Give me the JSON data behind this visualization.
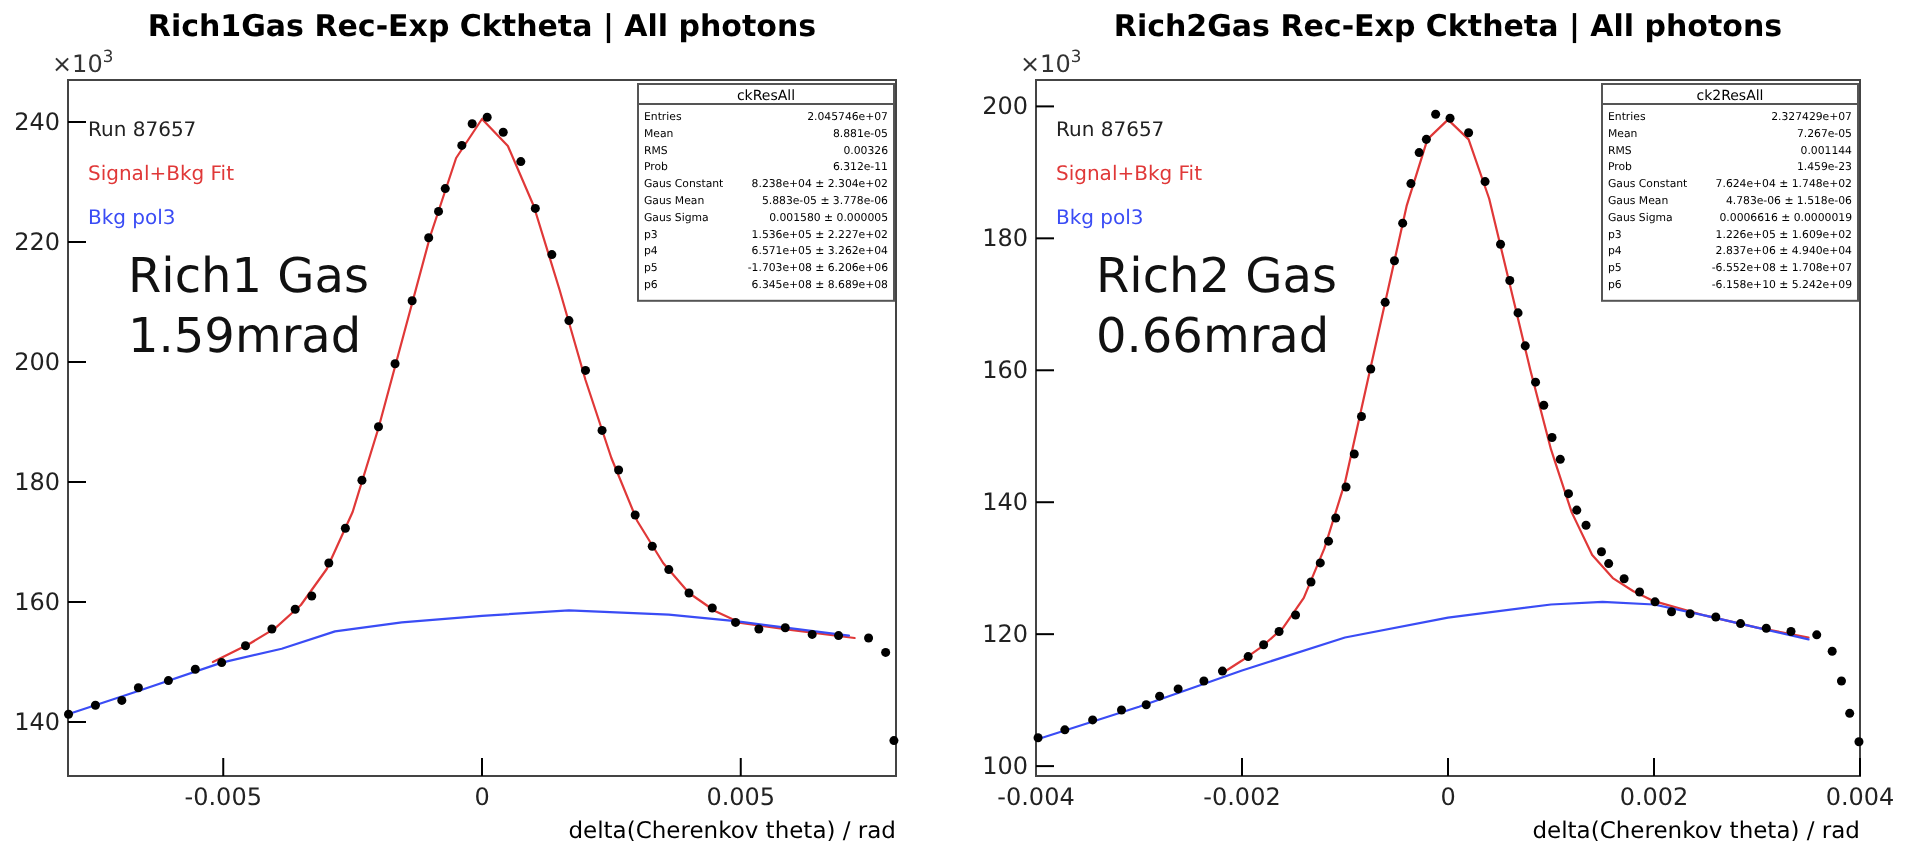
{
  "chart_data": [
    {
      "type": "scatter",
      "title": "Rich1Gas Rec-Exp Cktheta | All photons",
      "xlabel": "delta(Cherenkov theta) / rad",
      "xlim": [
        -0.008,
        0.008
      ],
      "xticks": [
        -0.005,
        0,
        0.005
      ],
      "ylim": [
        131,
        247
      ],
      "yticks": [
        140,
        160,
        180,
        200,
        220,
        240
      ],
      "legend": "top left",
      "annotations": [
        "×10$^{3}$",
        "Run 87657",
        "Rich1 Gas",
        "1.59mrad",
        "ckResAll",
        "Entries",
        "2.045746e+07",
        "Mean",
        "8.881e-05",
        "RMS",
        "0.00326",
        "Prob",
        "6.312e-11",
        "Gaus Constant",
        "8.238e+04 ± 2.304e+02",
        "Gaus Mean",
        "5.883e-05 ± 3.778e-06",
        "Gaus Sigma",
        "0.001580 ± 0.000005",
        "p3",
        "1.536e+05 ± 2.227e+02",
        "p4",
        "6.571e+05 ± 3.262e+04",
        "p5",
        "-1.703e+08 ± 6.206e+06",
        "p6",
        "6.345e+08 ± 8.689e+08"
      ],
      "series": [
        {
          "type": "scatter",
          "color": "#000000",
          "marker": "circle",
          "x": [
            -0.00799,
            -0.00747,
            -0.00696,
            -0.00664,
            -0.00606,
            -0.00554,
            -0.00503,
            -0.00457,
            -0.00406,
            -0.00361,
            -0.00329,
            -0.00296,
            -0.00264,
            -0.00232,
            -0.002,
            -0.00168,
            -0.00135,
            -0.00103,
            -0.00084,
            -0.00071,
            -0.00039,
            -0.00019,
            0.0001,
            0.00041,
            0.00075,
            0.00103,
            0.00135,
            0.00168,
            0.002,
            0.00232,
            0.00264,
            0.00296,
            0.00329,
            0.00361,
            0.004,
            0.00445,
            0.0049,
            0.00535,
            0.00586,
            0.00638,
            0.00689,
            0.00747,
            0.0078,
            0.00796
          ],
          "values": [
            141.3,
            142.8,
            143.6,
            145.7,
            146.9,
            148.8,
            149.9,
            152.7,
            155.5,
            158.8,
            161,
            166.5,
            172.3,
            180.3,
            189.2,
            199.7,
            210.2,
            220.7,
            225.1,
            228.9,
            236.1,
            239.7,
            240.8,
            238.3,
            233.4,
            225.6,
            217.9,
            206.9,
            198.6,
            188.6,
            182,
            174.5,
            169.3,
            165.4,
            161.5,
            159,
            156.6,
            155.5,
            155.7,
            154.6,
            154.4,
            154,
            151.6,
            136.9
          ]
        },
        {
          "type": "line",
          "name": "Signal+Bkg Fit",
          "color": "#e03838",
          "marker": "none",
          "x": [
            -0.0052,
            -0.0045,
            -0.004,
            -0.0035,
            -0.003,
            -0.0025,
            -0.002,
            -0.0015,
            -0.001,
            -0.0005,
            0,
            0.0005,
            0.001,
            0.0015,
            0.002,
            0.0025,
            0.003,
            0.0035,
            0.004,
            0.0045,
            0.005,
            0.006,
            0.0072
          ],
          "values": [
            150,
            153,
            155.6,
            159.5,
            165.5,
            175,
            189,
            205,
            221,
            234,
            240.5,
            236,
            226,
            212,
            197,
            184,
            173.5,
            166.5,
            161.5,
            158.5,
            156.5,
            155.3,
            154
          ]
        },
        {
          "type": "line",
          "name": "Bkg pol3",
          "color": "#3a4cf5",
          "marker": "none",
          "x": [
            -0.008,
            -0.0067,
            -0.00503,
            -0.00387,
            -0.00284,
            -0.00155,
            0,
            0.00168,
            0.00361,
            0.0049,
            0.00709
          ],
          "values": [
            141.3,
            145,
            149.9,
            152.2,
            155.1,
            156.6,
            157.7,
            158.6,
            157.9,
            156.8,
            154.4
          ]
        }
      ]
    },
    {
      "type": "scatter",
      "title": "Rich2Gas Rec-Exp Cktheta | All photons",
      "xlabel": "delta(Cherenkov theta) / rad",
      "xlim": [
        -0.004,
        0.004
      ],
      "xticks": [
        -0.004,
        -0.002,
        0,
        0.002,
        0.004
      ],
      "ylim": [
        98.5,
        204
      ],
      "yticks": [
        100,
        120,
        140,
        160,
        180,
        200
      ],
      "legend": "top left",
      "annotations": [
        "×10$^{3}$",
        "Run 87657",
        "Rich2 Gas",
        "0.66mrad",
        "ck2ResAll",
        "Entries",
        "2.327429e+07",
        "Mean",
        "7.267e-05",
        "RMS",
        "0.001144",
        "Prob",
        "1.459e-23",
        "Gaus Constant",
        "7.624e+04 ± 1.748e+02",
        "Gaus Mean",
        "4.783e-06 ± 1.518e-06",
        "Gaus Sigma",
        "0.0006616 ± 0.0000019",
        "p3",
        "1.226e+05 ± 1.609e+02",
        "p4",
        "2.837e+06 ± 4.940e+04",
        "p5",
        "-6.552e+08 ± 1.708e+07",
        "p6",
        "-6.158e+10 ± 5.242e+09"
      ],
      "series": [
        {
          "type": "scatter",
          "color": "#000000",
          "marker": "circle",
          "x": [
            -0.00398,
            -0.00372,
            -0.00345,
            -0.00317,
            -0.00293,
            -0.0028,
            -0.00262,
            -0.00237,
            -0.00219,
            -0.00194,
            -0.00179,
            -0.00164,
            -0.00148,
            -0.00133,
            -0.00124,
            -0.00116,
            -0.00109,
            -0.00099,
            -0.00091,
            -0.00084,
            -0.00075,
            -0.00061,
            -0.00052,
            -0.00044,
            -0.00036,
            -0.00028,
            -0.00021,
            -0.00012,
            2e-05,
            0.0002,
            0.00036,
            0.00051,
            0.0006,
            0.00068,
            0.00075,
            0.00085,
            0.00093,
            0.00101,
            0.00109,
            0.00117,
            0.00125,
            0.00134,
            0.00149,
            0.00156,
            0.00171,
            0.00186,
            0.00201,
            0.00217,
            0.00235,
            0.0026,
            0.00284,
            0.00309,
            0.00333,
            0.00358,
            0.00373,
            0.00382,
            0.0039,
            0.00399
          ],
          "values": [
            104.3,
            105.5,
            107,
            108.5,
            109.3,
            110.6,
            111.7,
            112.9,
            114.4,
            116.6,
            118.4,
            120.4,
            122.9,
            127.9,
            130.8,
            134.1,
            137.6,
            142.3,
            147.3,
            153,
            160.2,
            170.3,
            176.6,
            182.3,
            188.3,
            193,
            195,
            198.8,
            198.2,
            196,
            188.6,
            179.1,
            173.6,
            168.7,
            163.7,
            158.2,
            154.7,
            149.8,
            146.5,
            141.3,
            138.8,
            136.5,
            132.5,
            130.7,
            128.4,
            126.4,
            124.9,
            123.4,
            123.1,
            122.6,
            121.6,
            120.9,
            120.4,
            119.9,
            117.4,
            112.9,
            108,
            103.7
          ]
        },
        {
          "type": "line",
          "name": "Signal+Bkg Fit",
          "color": "#e03838",
          "marker": "none",
          "x": [
            -0.0022,
            -0.002,
            -0.0018,
            -0.0016,
            -0.0014,
            -0.0012,
            -0.001,
            -0.0008,
            -0.0006,
            -0.0004,
            -0.0002,
            0,
            0.0002,
            0.0004,
            0.0006,
            0.0008,
            0.001,
            0.0012,
            0.0014,
            0.0016,
            0.0018,
            0.002,
            0.0025,
            0.003,
            0.0035
          ],
          "values": [
            114,
            116,
            118.2,
            121,
            125.5,
            133,
            143,
            157,
            171,
            185,
            195,
            198,
            195,
            186,
            173,
            160,
            148,
            138.5,
            132,
            128.5,
            126.5,
            125,
            122.8,
            121,
            119.5
          ]
        },
        {
          "type": "line",
          "name": "Bkg pol3",
          "color": "#3a4cf5",
          "marker": "none",
          "x": [
            -0.004,
            -0.003,
            -0.002,
            -0.001,
            0,
            0.001,
            0.0015,
            0.002,
            0.0025,
            0.003,
            0.0035
          ],
          "values": [
            104,
            109,
            114.5,
            119.5,
            122.5,
            124.5,
            124.9,
            124.5,
            122.8,
            121,
            119.2
          ]
        }
      ]
    }
  ]
}
